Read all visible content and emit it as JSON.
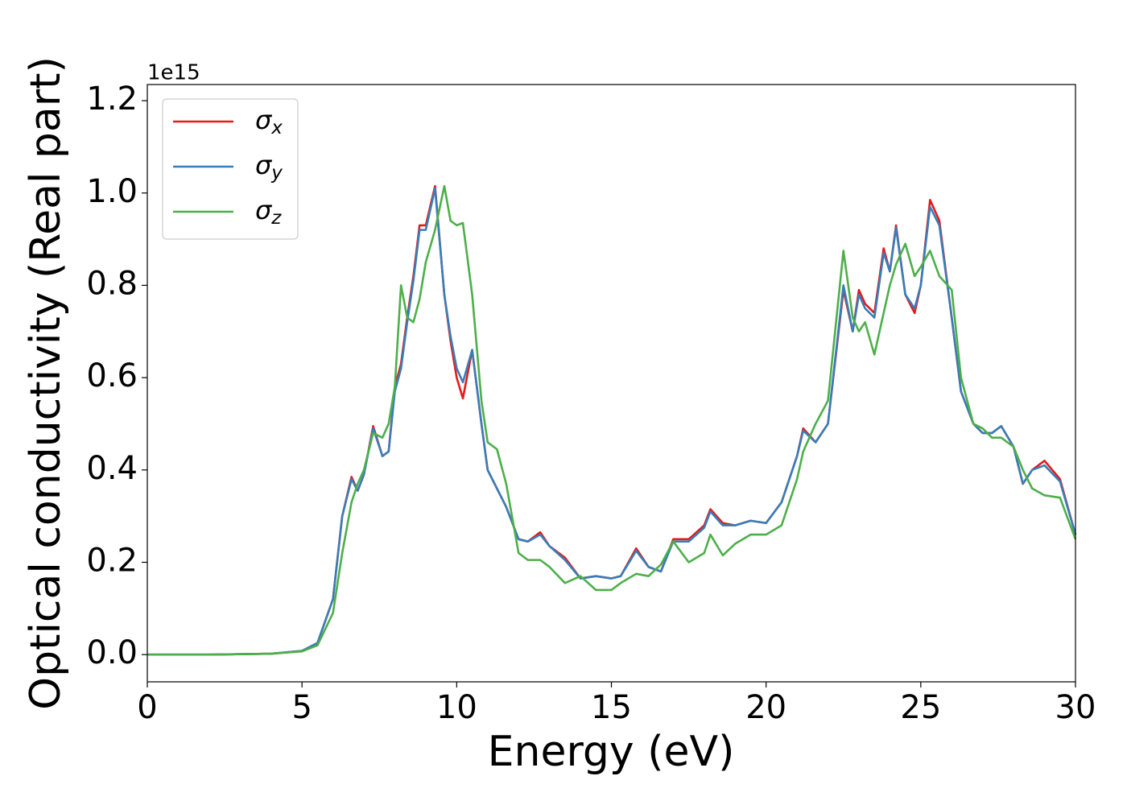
{
  "chart_data": {
    "type": "line",
    "xlabel": "Energy (eV)",
    "ylabel": "Optical conductivity (Real part)",
    "y_offset_label": "1e15",
    "xlim": [
      0,
      30
    ],
    "ylim": [
      -0.059,
      1.235
    ],
    "xticks": [
      0,
      5,
      10,
      15,
      20,
      25,
      30
    ],
    "yticks": [
      {
        "value": 0,
        "label": "0.0"
      },
      0.2,
      0.4,
      0.6,
      0.8,
      {
        "value": 1,
        "label": "1.0"
      },
      1.2
    ],
    "legend": "upper left",
    "x": [
      0,
      2,
      4,
      5,
      5.5,
      6,
      6.3,
      6.6,
      6.8,
      7,
      7.3,
      7.6,
      7.8,
      8,
      8.2,
      8.4,
      8.6,
      8.8,
      9,
      9.3,
      9.6,
      9.8,
      10,
      10.2,
      10.5,
      10.8,
      11,
      11.3,
      11.6,
      12,
      12.3,
      12.7,
      13,
      13.5,
      14,
      14.5,
      15,
      15.3,
      15.8,
      16.2,
      16.6,
      17,
      17.5,
      18,
      18.2,
      18.6,
      19,
      19.5,
      20,
      20.5,
      21,
      21.2,
      21.6,
      22,
      22.5,
      22.8,
      23,
      23.2,
      23.5,
      23.8,
      24,
      24.2,
      24.5,
      24.8,
      25,
      25.3,
      25.6,
      26,
      26.3,
      26.7,
      27,
      27.3,
      27.6,
      28,
      28.3,
      28.6,
      29,
      29.5,
      30
    ],
    "series": [
      {
        "name": "σx",
        "color": "#e41a1c",
        "values": [
          0,
          0,
          0.002,
          0.008,
          0.025,
          0.12,
          0.3,
          0.385,
          0.355,
          0.39,
          0.495,
          0.43,
          0.44,
          0.58,
          0.63,
          0.73,
          0.82,
          0.93,
          0.93,
          1.015,
          0.78,
          0.68,
          0.6,
          0.555,
          0.66,
          0.5,
          0.4,
          0.36,
          0.32,
          0.25,
          0.245,
          0.265,
          0.235,
          0.21,
          0.165,
          0.17,
          0.165,
          0.17,
          0.23,
          0.19,
          0.18,
          0.25,
          0.25,
          0.28,
          0.315,
          0.285,
          0.28,
          0.29,
          0.285,
          0.33,
          0.43,
          0.49,
          0.46,
          0.5,
          0.79,
          0.7,
          0.79,
          0.76,
          0.74,
          0.88,
          0.83,
          0.93,
          0.78,
          0.74,
          0.8,
          0.985,
          0.94,
          0.73,
          0.57,
          0.5,
          0.48,
          0.48,
          0.495,
          0.45,
          0.37,
          0.4,
          0.42,
          0.38,
          0.26
        ]
      },
      {
        "name": "σy",
        "color": "#377eb8",
        "values": [
          0,
          0,
          0.002,
          0.008,
          0.025,
          0.12,
          0.3,
          0.38,
          0.355,
          0.39,
          0.49,
          0.43,
          0.44,
          0.57,
          0.62,
          0.72,
          0.81,
          0.92,
          0.92,
          1.01,
          0.78,
          0.69,
          0.62,
          0.59,
          0.66,
          0.5,
          0.4,
          0.36,
          0.32,
          0.25,
          0.245,
          0.26,
          0.235,
          0.205,
          0.165,
          0.17,
          0.165,
          0.17,
          0.225,
          0.19,
          0.18,
          0.245,
          0.245,
          0.275,
          0.31,
          0.28,
          0.28,
          0.29,
          0.285,
          0.33,
          0.43,
          0.485,
          0.46,
          0.5,
          0.8,
          0.7,
          0.78,
          0.75,
          0.73,
          0.87,
          0.83,
          0.925,
          0.78,
          0.75,
          0.8,
          0.97,
          0.93,
          0.73,
          0.57,
          0.5,
          0.48,
          0.48,
          0.495,
          0.45,
          0.37,
          0.4,
          0.41,
          0.375,
          0.26
        ]
      },
      {
        "name": "σz",
        "color": "#4daf4a",
        "values": [
          0,
          0,
          0.002,
          0.007,
          0.02,
          0.09,
          0.22,
          0.33,
          0.37,
          0.4,
          0.48,
          0.47,
          0.5,
          0.58,
          0.8,
          0.73,
          0.72,
          0.77,
          0.85,
          0.92,
          1.015,
          0.94,
          0.93,
          0.935,
          0.78,
          0.55,
          0.46,
          0.445,
          0.37,
          0.22,
          0.205,
          0.205,
          0.19,
          0.155,
          0.17,
          0.14,
          0.14,
          0.155,
          0.175,
          0.17,
          0.195,
          0.245,
          0.2,
          0.22,
          0.26,
          0.215,
          0.24,
          0.26,
          0.26,
          0.28,
          0.38,
          0.44,
          0.5,
          0.55,
          0.875,
          0.73,
          0.7,
          0.72,
          0.65,
          0.74,
          0.8,
          0.845,
          0.89,
          0.82,
          0.84,
          0.875,
          0.82,
          0.79,
          0.6,
          0.5,
          0.49,
          0.47,
          0.47,
          0.45,
          0.4,
          0.36,
          0.345,
          0.34,
          0.25
        ]
      }
    ]
  }
}
